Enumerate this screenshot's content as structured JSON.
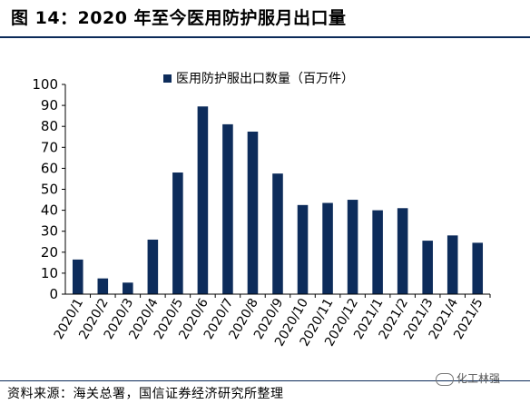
{
  "figure": {
    "title": "图 14：2020 年至今医用防护服月出口量",
    "source": "资料来源：海关总署，国信证券经济研究所整理",
    "watermark": "化工林强"
  },
  "chart_data": {
    "type": "bar",
    "categories": [
      "2020/1",
      "2020/2",
      "2020/3",
      "2020/4",
      "2020/5",
      "2020/6",
      "2020/7",
      "2020/8",
      "2020/9",
      "2020/10",
      "2020/11",
      "2020/12",
      "2021/1",
      "2021/2",
      "2021/3",
      "2021/4",
      "2021/5"
    ],
    "series": [
      {
        "name": "医用防护服出口数量（百万件）",
        "values": [
          16.5,
          7.5,
          5.5,
          26,
          58,
          89.5,
          81,
          77.5,
          57.5,
          42.5,
          43.5,
          45,
          40,
          41,
          25.5,
          28,
          24.5
        ],
        "color": "#0d2c5b"
      }
    ],
    "ylim": [
      0,
      100
    ],
    "yticks": [
      0,
      10,
      20,
      30,
      40,
      50,
      60,
      70,
      80,
      90,
      100
    ],
    "xlabel": "",
    "ylabel": "",
    "legend": "top-center",
    "grid": false
  }
}
